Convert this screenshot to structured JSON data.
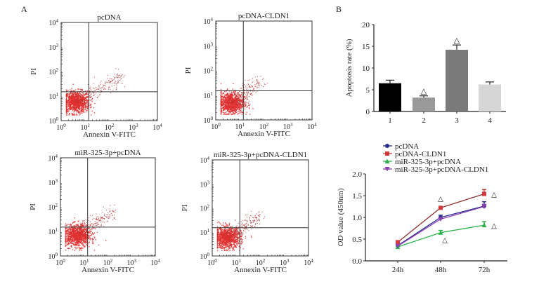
{
  "panel_labels": {
    "a": "A",
    "b": "B"
  },
  "chart_data": [
    {
      "type": "scatter",
      "panel": "A",
      "title": "pcDNA",
      "xlabel": "Annexin V-FITC",
      "ylabel": "PI",
      "x_scale": "log",
      "y_scale": "log",
      "xlim": [
        1,
        10000
      ],
      "ylim": [
        1,
        10000
      ],
      "xticks": [
        "10^0",
        "10^1",
        "10^2",
        "10^3",
        "10^4"
      ],
      "yticks": [
        "10^0",
        "10^1",
        "10^2",
        "10^3",
        "10^4"
      ],
      "gate": {
        "x": 14,
        "y": 15
      },
      "point_color": "#e03030",
      "cluster": {
        "center_x": 4,
        "center_y": 6,
        "tail_to_x": 300,
        "tail_to_y": 60
      }
    },
    {
      "type": "scatter",
      "panel": "A",
      "title": "pcDNA-CLDN1",
      "xlabel": "Annexin V-FITC",
      "ylabel": "PI",
      "x_scale": "log",
      "y_scale": "log",
      "xlim": [
        1,
        10000
      ],
      "ylim": [
        1,
        10000
      ],
      "xticks": [
        "10^0",
        "10^1",
        "10^2",
        "10^3",
        "10^4"
      ],
      "yticks": [
        "10^0",
        "10^1",
        "10^2",
        "10^3",
        "10^4"
      ],
      "gate": {
        "x": 14,
        "y": 15
      },
      "point_color": "#e03030",
      "cluster": {
        "center_x": 4,
        "center_y": 5,
        "tail_to_x": 80,
        "tail_to_y": 40
      }
    },
    {
      "type": "scatter",
      "panel": "A",
      "title": "miR-325-3p+pcDNA",
      "xlabel": "Annexin V-FITC",
      "ylabel": "PI",
      "x_scale": "log",
      "y_scale": "log",
      "xlim": [
        1,
        10000
      ],
      "ylim": [
        1,
        10000
      ],
      "xticks": [
        "10^0",
        "10^1",
        "10^2",
        "10^3",
        "10^4"
      ],
      "yticks": [
        "10^0",
        "10^1",
        "10^2",
        "10^3",
        "10^4"
      ],
      "gate": {
        "x": 14,
        "y": 15
      },
      "point_color": "#e03030",
      "cluster": {
        "center_x": 5,
        "center_y": 7,
        "tail_to_x": 200,
        "tail_to_y": 80
      }
    },
    {
      "type": "scatter",
      "panel": "A",
      "title": "miR-325-3p+pcDNA-CLDN1",
      "xlabel": "Annexin V-FITC",
      "ylabel": "PI",
      "x_scale": "log",
      "y_scale": "log",
      "xlim": [
        1,
        10000
      ],
      "ylim": [
        1,
        10000
      ],
      "xticks": [
        "10^0",
        "10^1",
        "10^2",
        "10^3",
        "10^4"
      ],
      "yticks": [
        "10^0",
        "10^1",
        "10^2",
        "10^3",
        "10^4"
      ],
      "gate": {
        "x": 14,
        "y": 15
      },
      "point_color": "#e03030",
      "cluster": {
        "center_x": 4,
        "center_y": 6,
        "tail_to_x": 100,
        "tail_to_y": 50
      }
    },
    {
      "type": "bar",
      "panel": "B",
      "title": "",
      "categories": [
        "1",
        "2",
        "3",
        "4"
      ],
      "values": [
        6.5,
        3.2,
        14.2,
        6.2
      ],
      "errors": [
        0.7,
        0.4,
        1.1,
        0.6
      ],
      "significance": [
        "",
        "△",
        "△",
        ""
      ],
      "colors": [
        "#000000",
        "#999999",
        "#7a7a7a",
        "#d6d6d6"
      ],
      "xlabel": "",
      "ylabel": "Apoptosis rate (%)",
      "ylim": [
        0,
        20
      ],
      "yticks": [
        0,
        5,
        10,
        15,
        20
      ]
    },
    {
      "type": "line",
      "panel": "B",
      "title": "",
      "x": [
        "24h",
        "48h",
        "72h"
      ],
      "xlabel": "",
      "ylabel_italic": "OD",
      "ylabel_rest": " value (450nm)",
      "ylim": [
        0,
        2.0
      ],
      "yticks": [
        "0.0",
        "0.5",
        "1.0",
        "1.5",
        "2.0"
      ],
      "legend_position": "top",
      "series": [
        {
          "name": "pcDNA",
          "color": "#2a2f8f",
          "marker": "circle",
          "values": [
            0.35,
            1.0,
            1.26
          ],
          "errors": [
            0.03,
            0.05,
            0.1
          ],
          "significance": [
            "",
            "",
            ""
          ]
        },
        {
          "name": "pcDNA-CLDN1",
          "color": "#d03a3a",
          "line_color": "#8b3030",
          "marker": "square",
          "values": [
            0.43,
            1.22,
            1.54
          ],
          "errors": [
            0.03,
            0.03,
            0.1
          ],
          "significance": [
            "",
            "△",
            "△"
          ]
        },
        {
          "name": "miR-325-3p+pcDNA",
          "color": "#2db24a",
          "marker": "triangle-up",
          "values": [
            0.32,
            0.65,
            0.82
          ],
          "errors": [
            0.02,
            0.05,
            0.08
          ],
          "significance": [
            "",
            "△",
            "△"
          ]
        },
        {
          "name": "miR-325-3p+pcDNA-CLDN1",
          "color": "#8a3fb0",
          "marker": "triangle-down",
          "values": [
            0.34,
            0.96,
            1.25
          ],
          "errors": [
            0.02,
            0.03,
            0.05
          ],
          "significance": [
            "",
            "",
            ""
          ]
        }
      ]
    }
  ]
}
